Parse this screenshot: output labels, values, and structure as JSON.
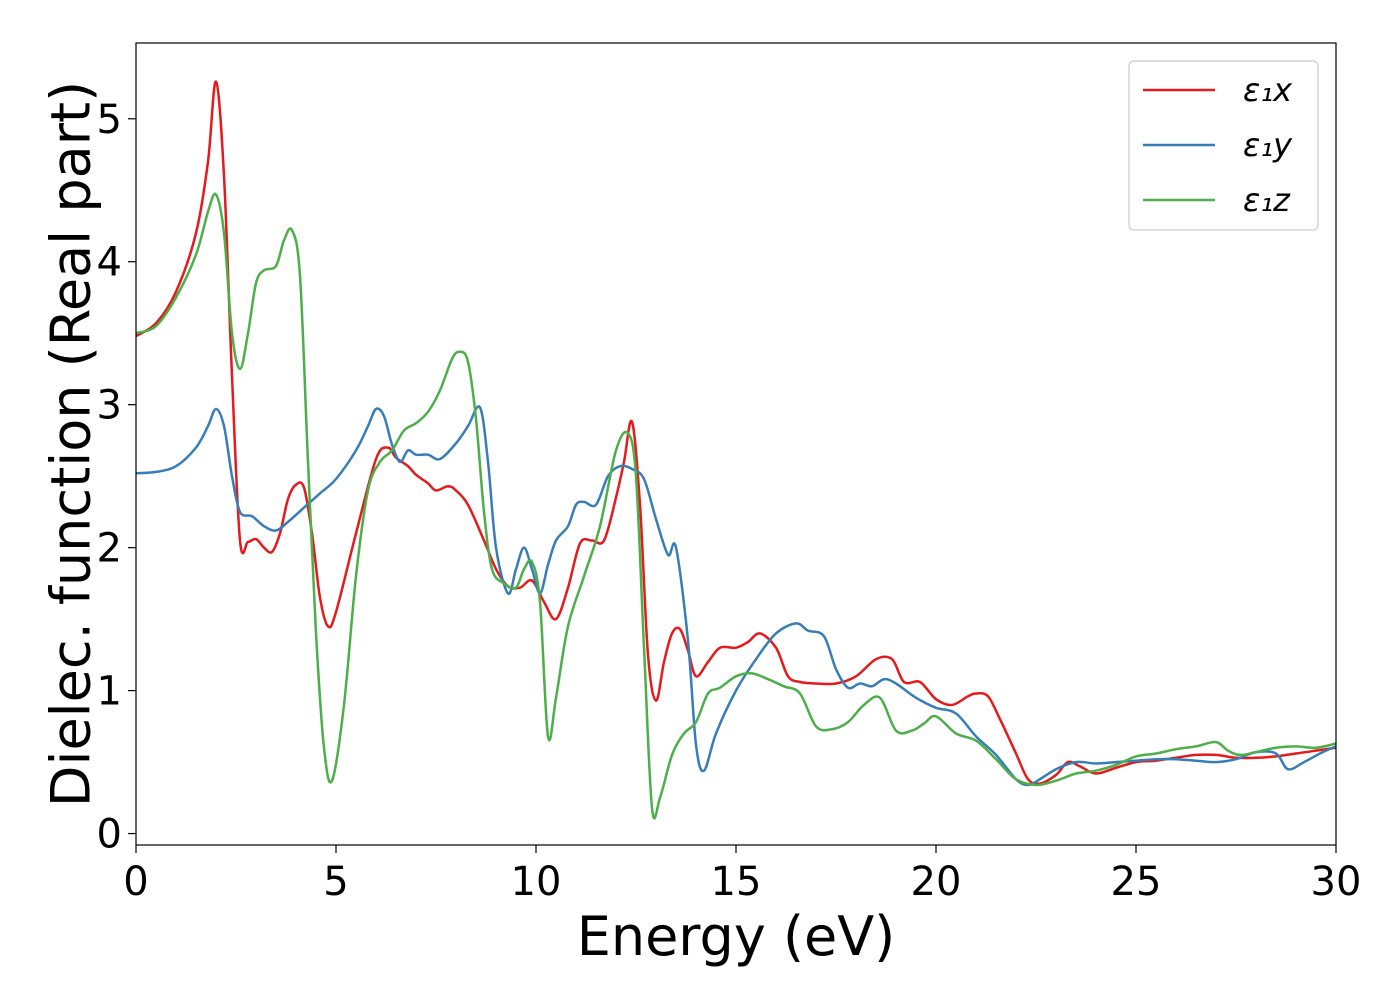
{
  "chart_data": {
    "type": "line",
    "xlabel": "Energy (eV)",
    "ylabel": "Dielec. function (Real part)",
    "xlim": [
      0,
      30
    ],
    "ylim": [
      -0.08,
      5.53
    ],
    "xticks": [
      0,
      5,
      10,
      15,
      20,
      25,
      30
    ],
    "yticks": [
      0,
      1,
      2,
      3,
      4,
      5
    ],
    "grid": false,
    "legend_position": "top-right",
    "series": [
      {
        "name": "ε₁x",
        "color": "#e41a1c",
        "x": [
          0,
          0.5,
          1.0,
          1.5,
          1.8,
          2.0,
          2.2,
          2.4,
          2.6,
          2.8,
          3.0,
          3.2,
          3.4,
          3.6,
          3.8,
          4.0,
          4.2,
          4.4,
          4.6,
          4.8,
          5.0,
          5.5,
          6.0,
          6.3,
          6.5,
          6.8,
          7.0,
          7.3,
          7.5,
          7.8,
          8.0,
          8.3,
          8.7,
          9.0,
          9.3,
          9.6,
          9.9,
          10.2,
          10.5,
          10.8,
          11.1,
          11.4,
          11.7,
          12.0,
          12.2,
          12.4,
          12.6,
          12.8,
          13.0,
          13.2,
          13.4,
          13.6,
          13.8,
          14.0,
          14.3,
          14.6,
          15.0,
          15.3,
          15.6,
          16.0,
          16.3,
          16.6,
          17.0,
          17.5,
          18.0,
          18.5,
          18.9,
          19.2,
          19.6,
          20.0,
          20.4,
          20.8,
          21.0,
          21.3,
          21.6,
          22.0,
          22.3,
          22.6,
          23.0,
          23.3,
          23.6,
          24.0,
          24.5,
          25.0,
          25.5,
          26.0,
          26.5,
          27.0,
          27.5,
          28.0,
          28.5,
          29.0,
          29.5,
          30.0
        ],
        "y": [
          3.48,
          3.57,
          3.79,
          4.2,
          4.7,
          5.26,
          4.6,
          3.2,
          2.05,
          2.04,
          2.06,
          2.0,
          1.97,
          2.1,
          2.34,
          2.44,
          2.42,
          2.1,
          1.65,
          1.45,
          1.55,
          2.1,
          2.62,
          2.7,
          2.63,
          2.57,
          2.51,
          2.45,
          2.4,
          2.43,
          2.4,
          2.3,
          2.05,
          1.85,
          1.73,
          1.72,
          1.77,
          1.62,
          1.5,
          1.72,
          2.03,
          2.05,
          2.05,
          2.35,
          2.6,
          2.88,
          2.3,
          1.25,
          0.93,
          1.2,
          1.4,
          1.43,
          1.28,
          1.1,
          1.2,
          1.3,
          1.3,
          1.34,
          1.4,
          1.3,
          1.1,
          1.06,
          1.05,
          1.05,
          1.1,
          1.22,
          1.22,
          1.06,
          1.06,
          0.94,
          0.9,
          0.96,
          0.98,
          0.96,
          0.8,
          0.56,
          0.38,
          0.35,
          0.41,
          0.5,
          0.47,
          0.42,
          0.46,
          0.5,
          0.51,
          0.53,
          0.55,
          0.55,
          0.53,
          0.53,
          0.54,
          0.56,
          0.58,
          0.6
        ]
      },
      {
        "name": "ε₁y",
        "color": "#377eb8",
        "x": [
          0,
          0.5,
          1.0,
          1.5,
          1.8,
          2.0,
          2.2,
          2.4,
          2.6,
          2.9,
          3.2,
          3.5,
          3.8,
          4.2,
          4.6,
          5.0,
          5.5,
          5.8,
          6.0,
          6.2,
          6.4,
          6.6,
          6.8,
          7.0,
          7.3,
          7.6,
          8.0,
          8.3,
          8.6,
          8.8,
          9.0,
          9.3,
          9.5,
          9.7,
          9.9,
          10.1,
          10.3,
          10.5,
          10.8,
          11.0,
          11.2,
          11.5,
          11.8,
          12.1,
          12.4,
          12.7,
          13.0,
          13.3,
          13.5,
          13.8,
          14.0,
          14.2,
          14.5,
          15.0,
          15.5,
          16.0,
          16.5,
          16.8,
          17.2,
          17.5,
          17.8,
          18.1,
          18.4,
          18.7,
          19.0,
          19.5,
          20.0,
          20.5,
          21.0,
          21.5,
          22.0,
          22.3,
          22.6,
          23.0,
          23.5,
          24.0,
          24.5,
          25.0,
          25.5,
          26.0,
          26.5,
          27.0,
          27.5,
          28.0,
          28.5,
          28.8,
          29.2,
          29.6,
          30.0
        ],
        "y": [
          2.52,
          2.53,
          2.57,
          2.7,
          2.85,
          2.97,
          2.85,
          2.5,
          2.25,
          2.22,
          2.15,
          2.12,
          2.18,
          2.28,
          2.38,
          2.48,
          2.68,
          2.85,
          2.97,
          2.92,
          2.72,
          2.6,
          2.68,
          2.65,
          2.65,
          2.62,
          2.73,
          2.85,
          2.98,
          2.6,
          2.0,
          1.68,
          1.85,
          2.0,
          1.85,
          1.68,
          1.88,
          2.05,
          2.15,
          2.3,
          2.32,
          2.3,
          2.5,
          2.57,
          2.55,
          2.48,
          2.2,
          1.95,
          2.0,
          1.35,
          0.62,
          0.44,
          0.7,
          1.0,
          1.22,
          1.4,
          1.47,
          1.42,
          1.38,
          1.15,
          1.02,
          1.05,
          1.03,
          1.08,
          1.05,
          0.95,
          0.88,
          0.84,
          0.68,
          0.55,
          0.38,
          0.34,
          0.38,
          0.45,
          0.5,
          0.49,
          0.5,
          0.51,
          0.52,
          0.52,
          0.51,
          0.5,
          0.52,
          0.57,
          0.56,
          0.45,
          0.5,
          0.56,
          0.61
        ]
      },
      {
        "name": "ε₁z",
        "color": "#4daf4a",
        "x": [
          0,
          0.5,
          1.0,
          1.5,
          1.8,
          2.0,
          2.2,
          2.4,
          2.6,
          2.8,
          3.0,
          3.2,
          3.5,
          3.7,
          3.9,
          4.1,
          4.3,
          4.5,
          4.7,
          4.9,
          5.2,
          5.5,
          5.8,
          6.1,
          6.4,
          6.7,
          7.0,
          7.3,
          7.6,
          7.9,
          8.1,
          8.3,
          8.5,
          8.7,
          8.9,
          9.2,
          9.5,
          9.7,
          9.9,
          10.1,
          10.3,
          10.5,
          10.8,
          11.2,
          11.6,
          12.0,
          12.3,
          12.5,
          12.7,
          12.9,
          13.1,
          13.4,
          13.7,
          14.0,
          14.3,
          14.6,
          15.0,
          15.4,
          15.8,
          16.2,
          16.6,
          17.0,
          17.4,
          17.8,
          18.2,
          18.6,
          19.0,
          19.4,
          19.7,
          20.0,
          20.5,
          21.0,
          21.5,
          22.0,
          22.5,
          23.0,
          23.5,
          24.0,
          24.5,
          25.0,
          25.5,
          26.0,
          26.5,
          27.0,
          27.3,
          27.6,
          28.0,
          28.5,
          29.0,
          29.5,
          30.0
        ],
        "y": [
          3.5,
          3.55,
          3.75,
          4.05,
          4.35,
          4.47,
          4.2,
          3.5,
          3.25,
          3.5,
          3.85,
          3.94,
          3.97,
          4.15,
          4.22,
          3.9,
          2.6,
          1.4,
          0.6,
          0.37,
          0.9,
          1.8,
          2.4,
          2.6,
          2.68,
          2.82,
          2.87,
          2.95,
          3.1,
          3.32,
          3.37,
          3.3,
          2.9,
          2.25,
          1.85,
          1.75,
          1.72,
          1.85,
          1.9,
          1.62,
          0.68,
          0.95,
          1.45,
          1.8,
          2.15,
          2.68,
          2.8,
          2.5,
          1.3,
          0.18,
          0.25,
          0.55,
          0.7,
          0.78,
          0.98,
          1.02,
          1.1,
          1.12,
          1.08,
          1.03,
          0.98,
          0.75,
          0.73,
          0.78,
          0.9,
          0.95,
          0.72,
          0.72,
          0.77,
          0.82,
          0.7,
          0.65,
          0.52,
          0.38,
          0.34,
          0.37,
          0.42,
          0.44,
          0.48,
          0.54,
          0.56,
          0.59,
          0.61,
          0.64,
          0.58,
          0.55,
          0.57,
          0.6,
          0.61,
          0.6,
          0.63
        ]
      }
    ]
  }
}
